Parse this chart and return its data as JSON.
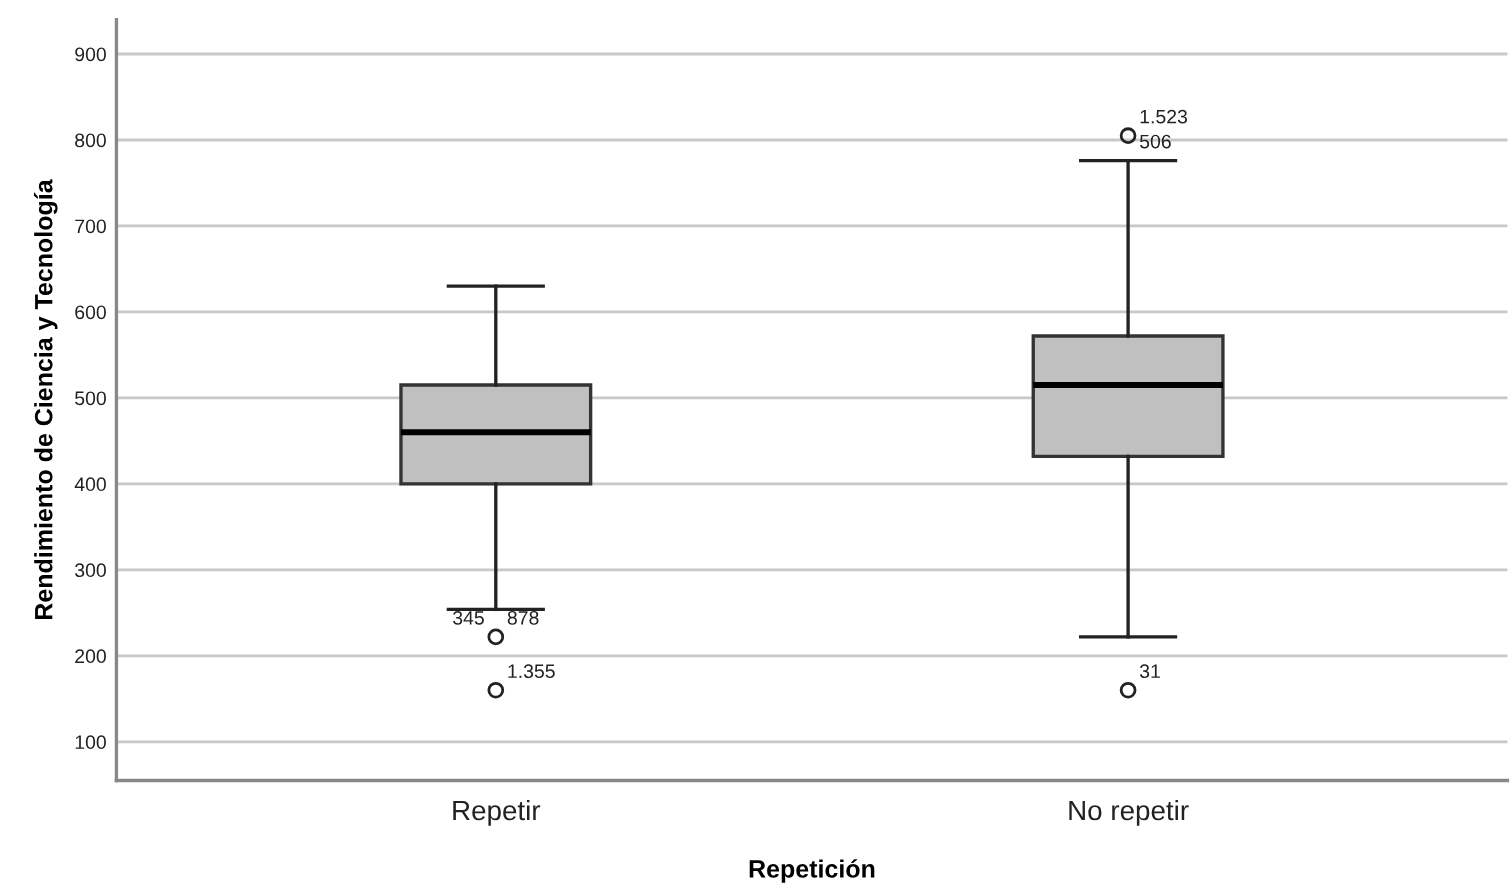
{
  "chart_data": {
    "type": "box",
    "xlabel": "Repetición",
    "ylabel": "Rendimiento de Ciencia y Tecnología",
    "categories": [
      "Repetir",
      "No repetir"
    ],
    "boxes": [
      {
        "low": 254,
        "q1": 400,
        "median": 460,
        "q3": 515,
        "high": 630,
        "outliers": [
          222,
          160
        ]
      },
      {
        "low": 222,
        "q1": 432,
        "median": 515,
        "q3": 572,
        "high": 776,
        "outliers": [
          805,
          160
        ]
      }
    ],
    "colors": [
      "#c0c0c0",
      "#c0c0c0"
    ],
    "ylim": [
      55,
      940
    ],
    "yticks": [
      100,
      200,
      300,
      400,
      500,
      600,
      700,
      800,
      900
    ],
    "grid": "y",
    "marker": "circle",
    "annotations": [
      "345",
      "878",
      "1.355",
      "1.523",
      "506",
      "31"
    ]
  }
}
